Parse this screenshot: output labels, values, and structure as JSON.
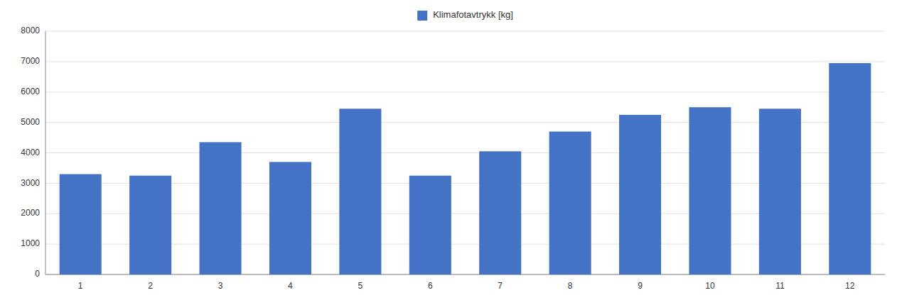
{
  "chart_data": {
    "type": "bar",
    "categories": [
      "1",
      "2",
      "3",
      "4",
      "5",
      "6",
      "7",
      "8",
      "9",
      "10",
      "11",
      "12"
    ],
    "series": [
      {
        "name": "Klimafotavtrykk [kg]",
        "color": "#4472C4",
        "values": [
          3300,
          3250,
          4350,
          3700,
          5450,
          3250,
          4050,
          4700,
          5250,
          5500,
          5450,
          6950
        ]
      }
    ],
    "ylim": [
      0,
      8000
    ],
    "yticks": [
      0,
      1000,
      2000,
      3000,
      4000,
      5000,
      6000,
      7000,
      8000
    ],
    "grid": true,
    "legend": "top"
  }
}
